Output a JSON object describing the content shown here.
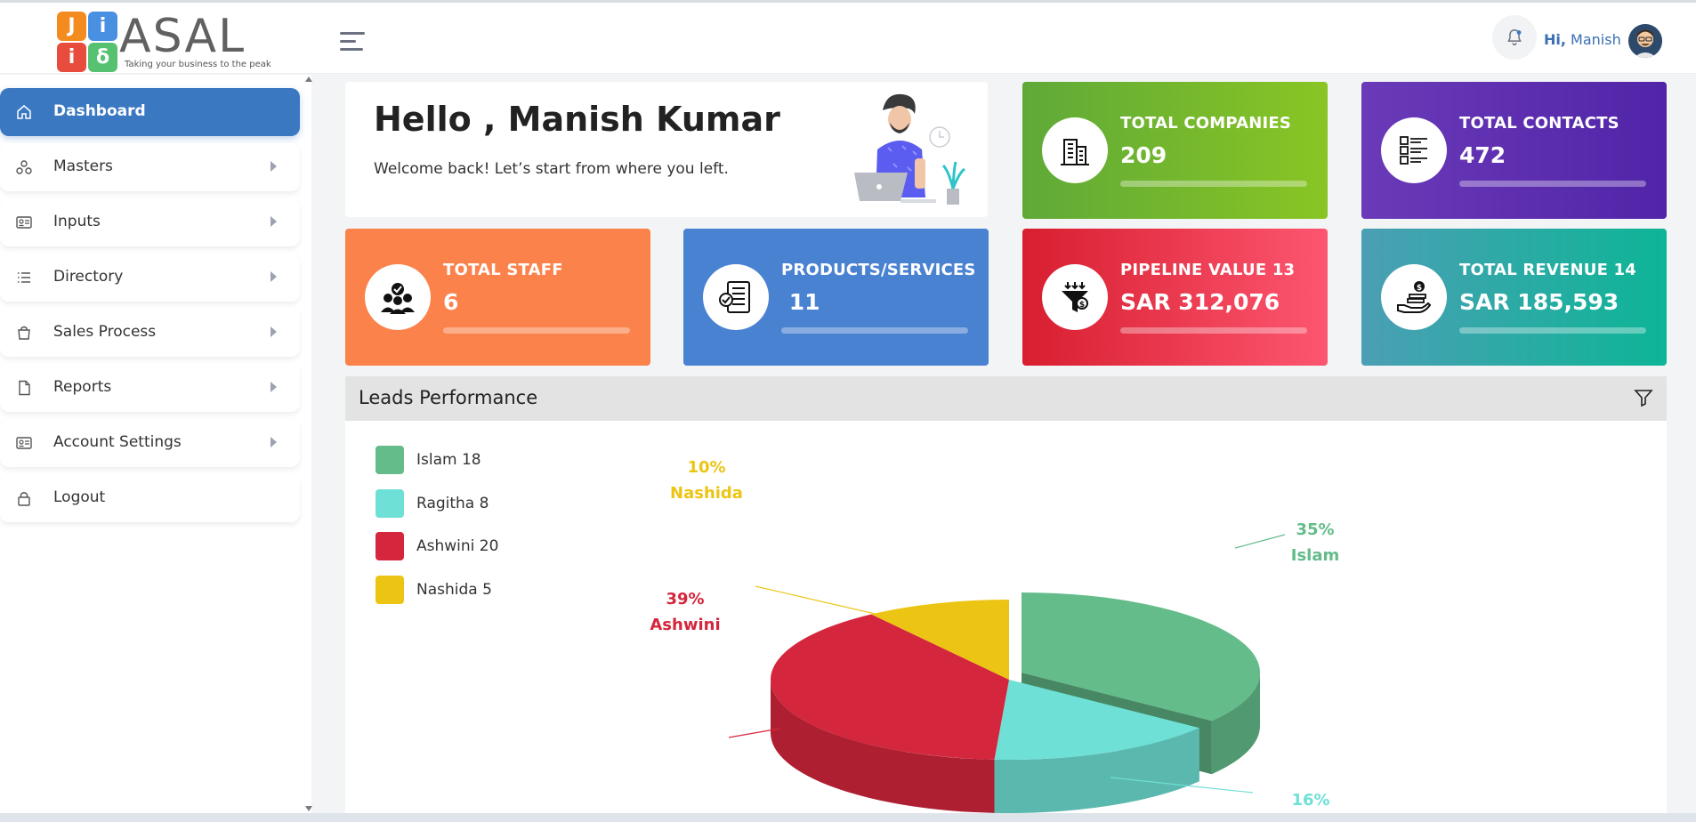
{
  "app": {
    "logo_letters": [
      "J",
      "i",
      "i",
      "δ"
    ],
    "logo_word": "ASAL",
    "logo_tagline": "Taking your business to the peak"
  },
  "header": {
    "greeting_prefix": "Hi,",
    "user_name": "Manish"
  },
  "sidebar": {
    "items": [
      {
        "label": "Dashboard",
        "icon": "home-icon",
        "active": true
      },
      {
        "label": "Masters",
        "icon": "nodes-icon",
        "active": false
      },
      {
        "label": "Inputs",
        "icon": "id-card-icon",
        "active": false
      },
      {
        "label": "Directory",
        "icon": "list-icon",
        "active": false
      },
      {
        "label": "Sales Process",
        "icon": "bag-icon",
        "active": false
      },
      {
        "label": "Reports",
        "icon": "document-icon",
        "active": false
      },
      {
        "label": "Account Settings",
        "icon": "id-card-icon",
        "active": false
      },
      {
        "label": "Logout",
        "icon": "lock-icon",
        "active": false
      }
    ]
  },
  "welcome": {
    "title": "Hello , Manish Kumar",
    "subtitle": "Welcome back! Let’s start from where you left."
  },
  "stats": {
    "companies": {
      "label": "TOTAL COMPANIES",
      "value": "209",
      "icon": "building-icon"
    },
    "contacts": {
      "label": "TOTAL CONTACTS",
      "value": "472",
      "icon": "contact-list-icon"
    },
    "staff": {
      "label": "TOTAL STAFF",
      "value": "6",
      "icon": "team-icon"
    },
    "products": {
      "label": "PRODUCTS/SERVICES",
      "value": " 11",
      "icon": "checklist-icon"
    },
    "pipeline": {
      "label": "PIPELINE VALUE 13",
      "value": "SAR 312,076",
      "icon": "funnel-icon"
    },
    "revenue": {
      "label": "TOTAL REVENUE 14",
      "value": "SAR 185,593",
      "icon": "money-hand-icon"
    }
  },
  "leads": {
    "title": "Leads Performance",
    "legend": [
      "Islam 18",
      "Ragitha 8",
      "Ashwini 20",
      "Nashida 5"
    ]
  },
  "chart_data": {
    "type": "pie",
    "title": "Leads Performance",
    "categories": [
      "Islam",
      "Ragitha",
      "Ashwini",
      "Nashida"
    ],
    "values": [
      18,
      8,
      20,
      5
    ],
    "percent_labels": [
      "35%",
      "16%",
      "39%",
      "10%"
    ],
    "colors": [
      "#63bc8a",
      "#6fe0d6",
      "#d4263d",
      "#ecc514"
    ],
    "legend_placement": "top-left",
    "style": "3d"
  }
}
